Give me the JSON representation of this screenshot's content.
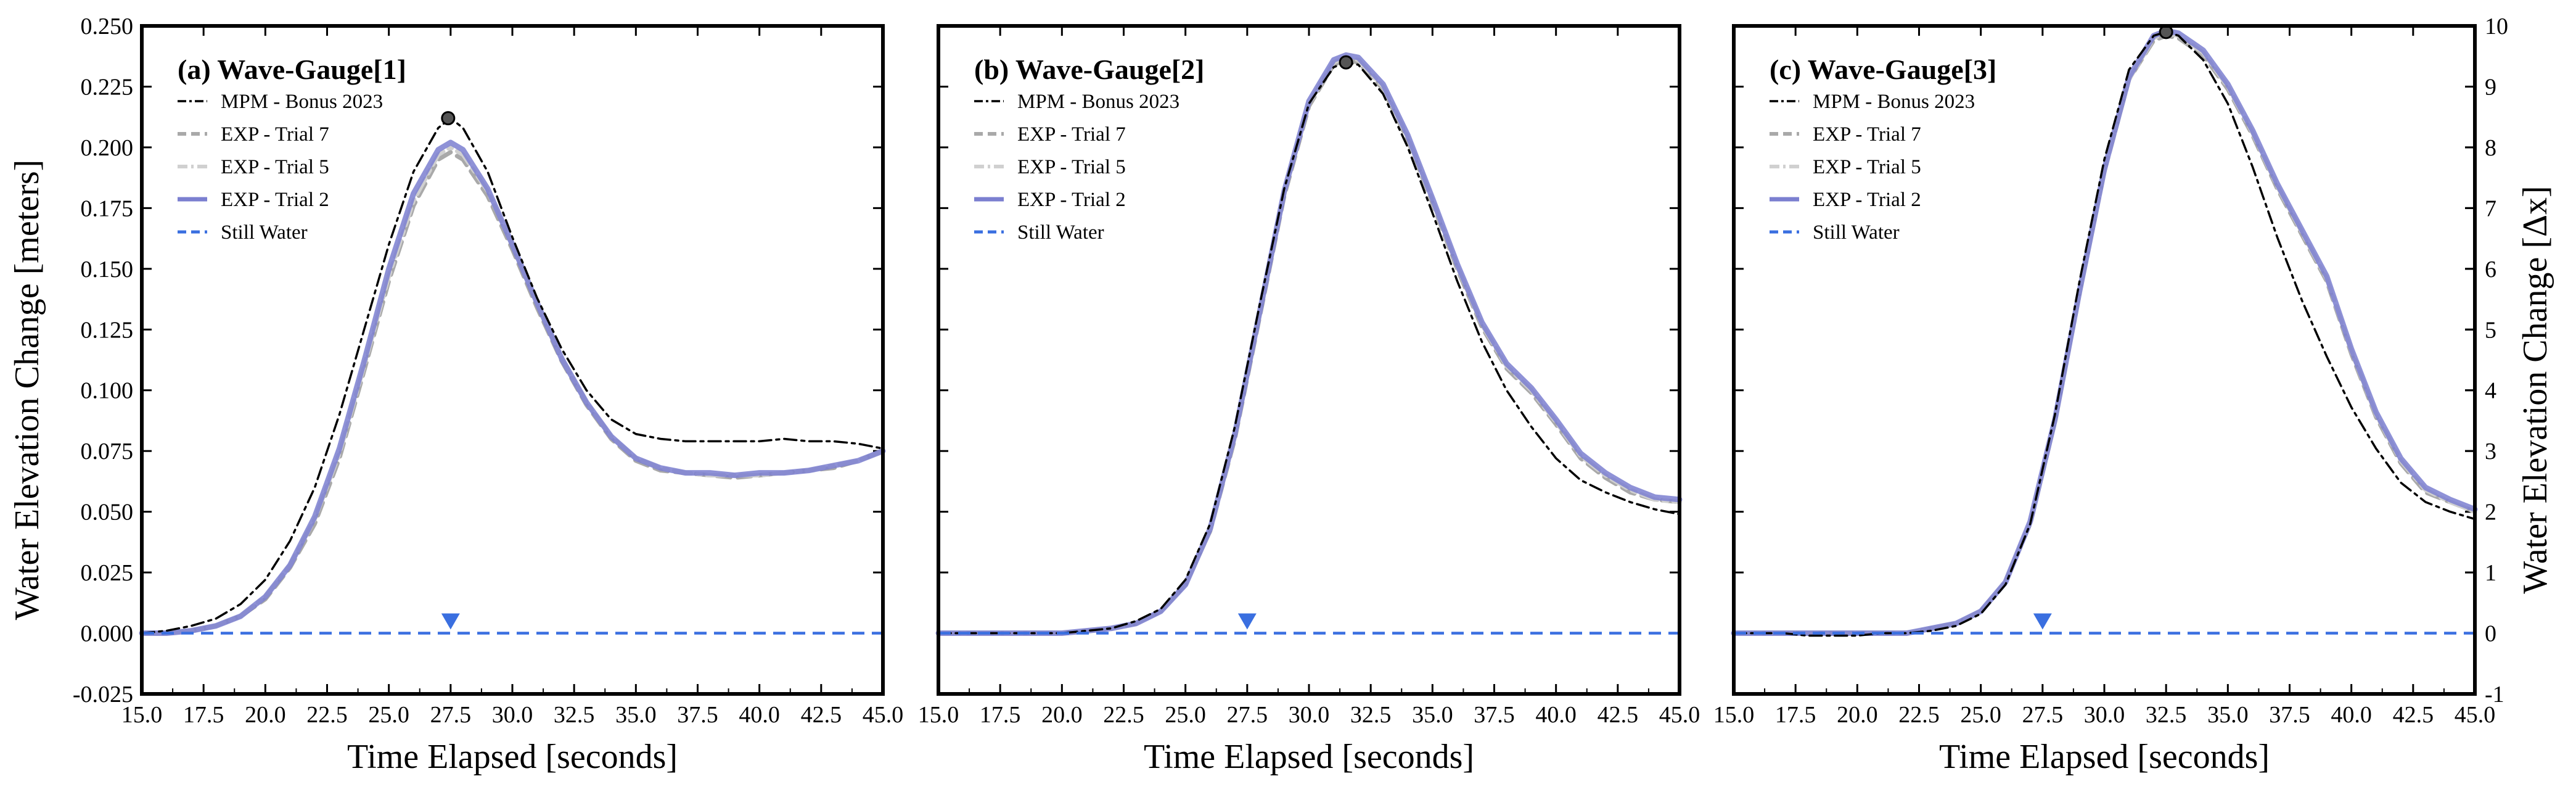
{
  "figure": {
    "xlabel": "Time Elapsed [seconds]",
    "ylabel_left": "Water Elevation Change [meters]",
    "ylabel_right": "Water Elevation Change [Δx]"
  },
  "colors": {
    "mpm": "#000000",
    "trial7": "#a9a9a9",
    "trial5": "#d0d0d0",
    "trial2": "#7b7fd0",
    "still_water": "#3a6fe0"
  },
  "chart_data": [
    {
      "type": "line",
      "title": "(a) Wave-Gauge[1]",
      "xlabel": "Time Elapsed [seconds]",
      "ylabel": "Water Elevation Change [meters]",
      "xlim": [
        15.0,
        45.0
      ],
      "ylim": [
        -0.025,
        0.25
      ],
      "xticks": [
        "15.0",
        "17.5",
        "20.0",
        "22.5",
        "25.0",
        "27.5",
        "30.0",
        "32.5",
        "35.0",
        "37.5",
        "40.0",
        "42.5",
        "45.0"
      ],
      "yticks": [
        "-0.025",
        "0.000",
        "0.025",
        "0.050",
        "0.075",
        "0.100",
        "0.125",
        "0.150",
        "0.175",
        "0.200",
        "0.225",
        "0.250"
      ],
      "legend": [
        "MPM - Bonus 2023",
        "EXP - Trial 7",
        "EXP - Trial 5",
        "EXP - Trial 2",
        "Still Water"
      ],
      "still_water": 0.0,
      "still_water_marker_x": 27.5,
      "peak_marker": {
        "x": 27.4,
        "y": 0.212
      },
      "x": [
        15,
        16,
        17,
        18,
        19,
        20,
        21,
        22,
        23,
        24,
        25,
        26,
        27,
        27.5,
        28,
        29,
        30,
        31,
        32,
        33,
        34,
        35,
        36,
        37,
        38,
        39,
        40,
        41,
        42,
        43,
        44,
        45
      ],
      "series": [
        {
          "name": "MPM - Bonus 2023",
          "style": "dashdot",
          "values": [
            0.0,
            0.001,
            0.003,
            0.006,
            0.012,
            0.022,
            0.038,
            0.06,
            0.09,
            0.125,
            0.16,
            0.19,
            0.208,
            0.212,
            0.208,
            0.19,
            0.163,
            0.138,
            0.117,
            0.1,
            0.088,
            0.082,
            0.08,
            0.079,
            0.079,
            0.079,
            0.079,
            0.08,
            0.079,
            0.079,
            0.078,
            0.076
          ]
        },
        {
          "name": "EXP - Trial 7",
          "style": "dashed",
          "values": [
            0.0,
            0.0,
            0.001,
            0.003,
            0.007,
            0.014,
            0.027,
            0.045,
            0.072,
            0.108,
            0.145,
            0.176,
            0.195,
            0.198,
            0.195,
            0.18,
            0.158,
            0.134,
            0.112,
            0.094,
            0.08,
            0.071,
            0.067,
            0.066,
            0.065,
            0.064,
            0.065,
            0.066,
            0.067,
            0.068,
            0.071,
            0.075
          ]
        },
        {
          "name": "EXP - Trial 5",
          "style": "dashdot",
          "values": [
            0.0,
            0.0,
            0.001,
            0.003,
            0.007,
            0.015,
            0.028,
            0.047,
            0.074,
            0.11,
            0.147,
            0.178,
            0.197,
            0.2,
            0.197,
            0.182,
            0.16,
            0.136,
            0.113,
            0.095,
            0.081,
            0.072,
            0.068,
            0.066,
            0.065,
            0.065,
            0.065,
            0.066,
            0.067,
            0.069,
            0.071,
            0.075
          ]
        },
        {
          "name": "EXP - Trial 2",
          "style": "solid",
          "values": [
            0.0,
            0.0,
            0.001,
            0.003,
            0.007,
            0.015,
            0.028,
            0.048,
            0.076,
            0.112,
            0.15,
            0.181,
            0.199,
            0.202,
            0.199,
            0.183,
            0.16,
            0.136,
            0.113,
            0.095,
            0.081,
            0.072,
            0.068,
            0.066,
            0.066,
            0.065,
            0.066,
            0.066,
            0.067,
            0.069,
            0.071,
            0.075
          ]
        }
      ]
    },
    {
      "type": "line",
      "title": "(b) Wave-Gauge[2]",
      "xlabel": "Time Elapsed [seconds]",
      "xlim": [
        15.0,
        45.0
      ],
      "ylim": [
        -0.025,
        0.25
      ],
      "xticks": [
        "15.0",
        "17.5",
        "20.0",
        "22.5",
        "25.0",
        "27.5",
        "30.0",
        "32.5",
        "35.0",
        "37.5",
        "40.0",
        "42.5",
        "45.0"
      ],
      "legend": [
        "MPM - Bonus 2023",
        "EXP - Trial 7",
        "EXP - Trial 5",
        "EXP - Trial 2",
        "Still Water"
      ],
      "still_water": 0.0,
      "still_water_marker_x": 27.5,
      "peak_marker": {
        "x": 31.5,
        "y": 0.235
      },
      "x": [
        15,
        16,
        17,
        18,
        19,
        20,
        21,
        22,
        23,
        24,
        25,
        26,
        27,
        28,
        29,
        30,
        31,
        31.5,
        32,
        33,
        34,
        35,
        36,
        37,
        38,
        39,
        40,
        41,
        42,
        43,
        44,
        45
      ],
      "series": [
        {
          "name": "MPM - Bonus 2023",
          "style": "dashdot",
          "values": [
            0.0,
            0.0,
            0.0,
            0.0,
            0.0,
            0.0,
            0.001,
            0.002,
            0.005,
            0.01,
            0.022,
            0.045,
            0.085,
            0.135,
            0.183,
            0.218,
            0.233,
            0.235,
            0.234,
            0.222,
            0.2,
            0.173,
            0.145,
            0.12,
            0.1,
            0.085,
            0.072,
            0.063,
            0.058,
            0.054,
            0.051,
            0.049
          ]
        },
        {
          "name": "EXP - Trial 7",
          "style": "dashed",
          "values": [
            0.0,
            0.0,
            0.0,
            0.0,
            0.0,
            0.0,
            0.001,
            0.002,
            0.004,
            0.009,
            0.02,
            0.042,
            0.08,
            0.13,
            0.18,
            0.217,
            0.234,
            0.236,
            0.235,
            0.224,
            0.203,
            0.177,
            0.15,
            0.126,
            0.109,
            0.099,
            0.086,
            0.072,
            0.064,
            0.058,
            0.055,
            0.054
          ]
        },
        {
          "name": "EXP - Trial 5",
          "style": "dashdot",
          "values": [
            0.0,
            0.0,
            0.0,
            0.0,
            0.0,
            0.0,
            0.001,
            0.002,
            0.004,
            0.009,
            0.02,
            0.042,
            0.081,
            0.131,
            0.181,
            0.218,
            0.235,
            0.237,
            0.236,
            0.225,
            0.204,
            0.178,
            0.151,
            0.127,
            0.11,
            0.1,
            0.087,
            0.073,
            0.065,
            0.059,
            0.055,
            0.054
          ]
        },
        {
          "name": "EXP - Trial 2",
          "style": "solid",
          "values": [
            0.0,
            0.0,
            0.0,
            0.0,
            0.0,
            0.0,
            0.001,
            0.002,
            0.004,
            0.009,
            0.02,
            0.043,
            0.082,
            0.132,
            0.182,
            0.219,
            0.236,
            0.238,
            0.237,
            0.226,
            0.205,
            0.179,
            0.152,
            0.128,
            0.111,
            0.101,
            0.088,
            0.074,
            0.066,
            0.06,
            0.056,
            0.055
          ]
        }
      ]
    },
    {
      "type": "line",
      "title": "(c) Wave-Gauge[3]",
      "xlabel": "Time Elapsed [seconds]",
      "ylabel_right": "Water Elevation Change [Δx]",
      "xlim": [
        15.0,
        45.0
      ],
      "ylim_right": [
        -1,
        10
      ],
      "xticks": [
        "15.0",
        "17.5",
        "20.0",
        "22.5",
        "25.0",
        "27.5",
        "30.0",
        "32.5",
        "35.0",
        "37.5",
        "40.0",
        "42.5",
        "45.0"
      ],
      "yticks_right": [
        "-1",
        "0",
        "1",
        "2",
        "3",
        "4",
        "5",
        "6",
        "7",
        "8",
        "9",
        "10"
      ],
      "legend": [
        "MPM - Bonus 2023",
        "EXP - Trial 7",
        "EXP - Trial 5",
        "EXP - Trial 2",
        "Still Water"
      ],
      "still_water": 0.0,
      "still_water_marker_x": 27.5,
      "peak_marker": {
        "x": 32.5,
        "y": 0.2475
      },
      "x": [
        15,
        16,
        17,
        18,
        19,
        20,
        21,
        22,
        23,
        24,
        25,
        26,
        27,
        28,
        29,
        30,
        31,
        32,
        32.5,
        33,
        34,
        35,
        36,
        37,
        38,
        39,
        40,
        41,
        42,
        43,
        44,
        45
      ],
      "series": [
        {
          "name": "MPM - Bonus 2023",
          "style": "dashdot",
          "values": [
            0.0,
            0.0,
            0.0,
            -0.001,
            -0.001,
            -0.001,
            0.0,
            0.0,
            0.001,
            0.003,
            0.008,
            0.02,
            0.045,
            0.09,
            0.145,
            0.195,
            0.232,
            0.246,
            0.2475,
            0.246,
            0.236,
            0.218,
            0.192,
            0.163,
            0.137,
            0.114,
            0.093,
            0.076,
            0.062,
            0.054,
            0.05,
            0.047
          ]
        },
        {
          "name": "EXP - Trial 7",
          "style": "dashed",
          "values": [
            0.0,
            0.0,
            0.0,
            0.0,
            0.0,
            0.0,
            0.0,
            0.0,
            0.002,
            0.004,
            0.009,
            0.021,
            0.045,
            0.087,
            0.14,
            0.19,
            0.228,
            0.244,
            0.246,
            0.245,
            0.238,
            0.224,
            0.205,
            0.183,
            0.164,
            0.145,
            0.115,
            0.089,
            0.07,
            0.058,
            0.054,
            0.05
          ]
        },
        {
          "name": "EXP - Trial 5",
          "style": "dashdot",
          "values": [
            0.0,
            0.0,
            0.0,
            0.0,
            0.0,
            0.0,
            0.0,
            0.0,
            0.002,
            0.004,
            0.009,
            0.021,
            0.045,
            0.087,
            0.14,
            0.19,
            0.228,
            0.245,
            0.247,
            0.246,
            0.239,
            0.225,
            0.206,
            0.184,
            0.165,
            0.146,
            0.116,
            0.09,
            0.071,
            0.059,
            0.054,
            0.05
          ]
        },
        {
          "name": "EXP - Trial 2",
          "style": "solid",
          "values": [
            0.0,
            0.0,
            0.0,
            0.0,
            0.0,
            0.0,
            0.0,
            0.0,
            0.002,
            0.004,
            0.009,
            0.021,
            0.046,
            0.088,
            0.141,
            0.191,
            0.229,
            0.246,
            0.248,
            0.247,
            0.24,
            0.226,
            0.207,
            0.185,
            0.166,
            0.147,
            0.117,
            0.091,
            0.072,
            0.06,
            0.055,
            0.051
          ]
        }
      ]
    }
  ]
}
